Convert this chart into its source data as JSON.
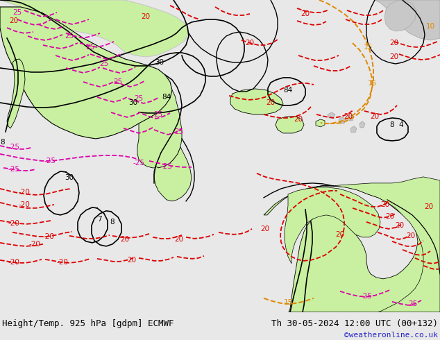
{
  "title_left": "Height/Temp. 925 hPa [gdpm] ECMWF",
  "title_right": "Th 30-05-2024 12:00 UTC (00+132)",
  "credit": "©weatheronline.co.uk",
  "bg_color": "#e8e8e8",
  "ocean_color": "#e0e8f0",
  "land_green_color": "#c8f0a0",
  "land_gray_color": "#c8c8c8",
  "contour_red_color": "#dd0000",
  "contour_magenta_color": "#dd00aa",
  "contour_orange_color": "#dd8800",
  "contour_black_color": "#000000",
  "text_color": "#000000",
  "credit_color": "#2222cc",
  "bottom_bar_color": "#ffffff",
  "fig_width": 6.34,
  "fig_height": 4.9,
  "dpi": 100,
  "bottom_bar_height": 0.082,
  "title_fontsize": 9.0,
  "credit_fontsize": 8.0,
  "label_fontsize": 7.5
}
